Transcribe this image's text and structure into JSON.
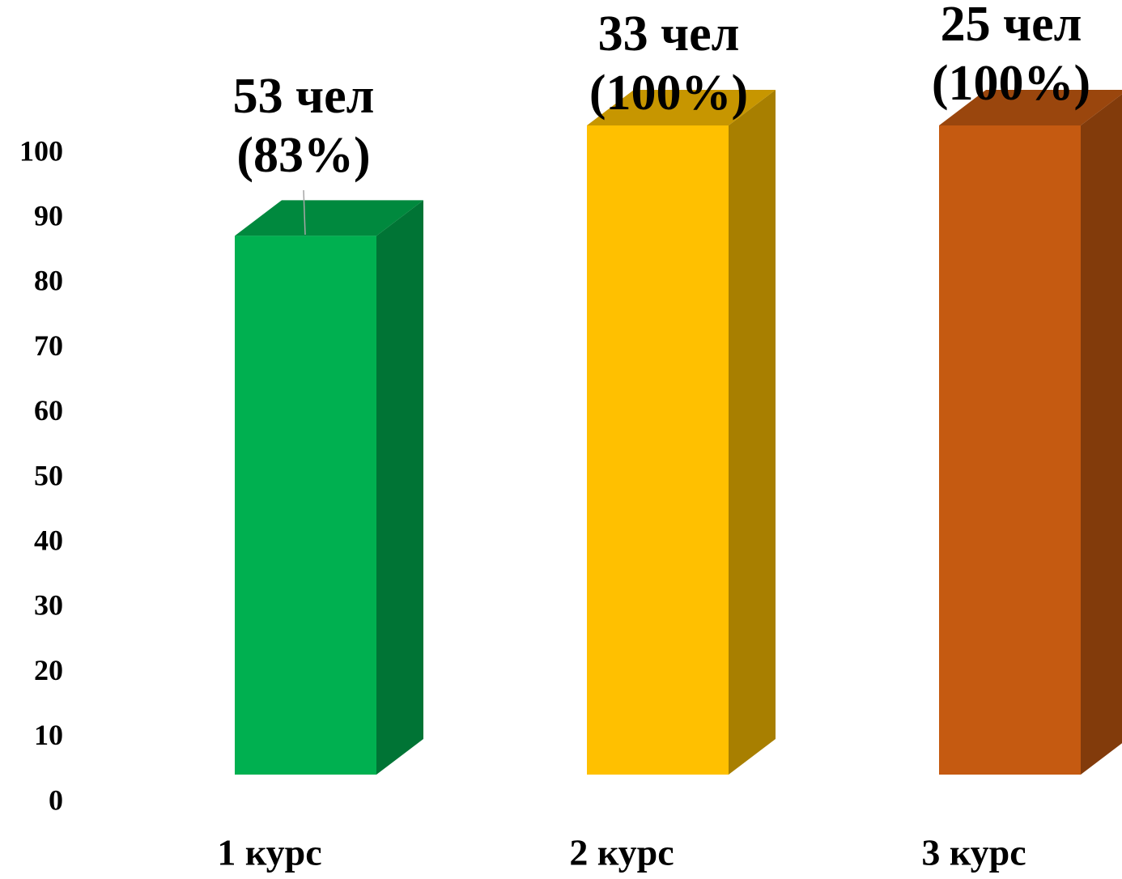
{
  "chart_data": {
    "type": "bar",
    "style": "3d-column",
    "categories": [
      "1 курс",
      "2 курс",
      "3 курс"
    ],
    "values": [
      83,
      100,
      100
    ],
    "data_labels": [
      [
        "53 чел",
        "(83%)"
      ],
      [
        "33 чел",
        "(100%)"
      ],
      [
        "25 чел",
        "(100%)"
      ]
    ],
    "colors": [
      "#00B050",
      "#FFC000",
      "#C55A11"
    ],
    "ylim": [
      0,
      100
    ],
    "yticks": [
      "0",
      "10",
      "20",
      "30",
      "40",
      "50",
      "60",
      "70",
      "80",
      "90",
      "100"
    ],
    "title": "",
    "xlabel": "",
    "ylabel": "",
    "grid": false,
    "legend": "none"
  }
}
